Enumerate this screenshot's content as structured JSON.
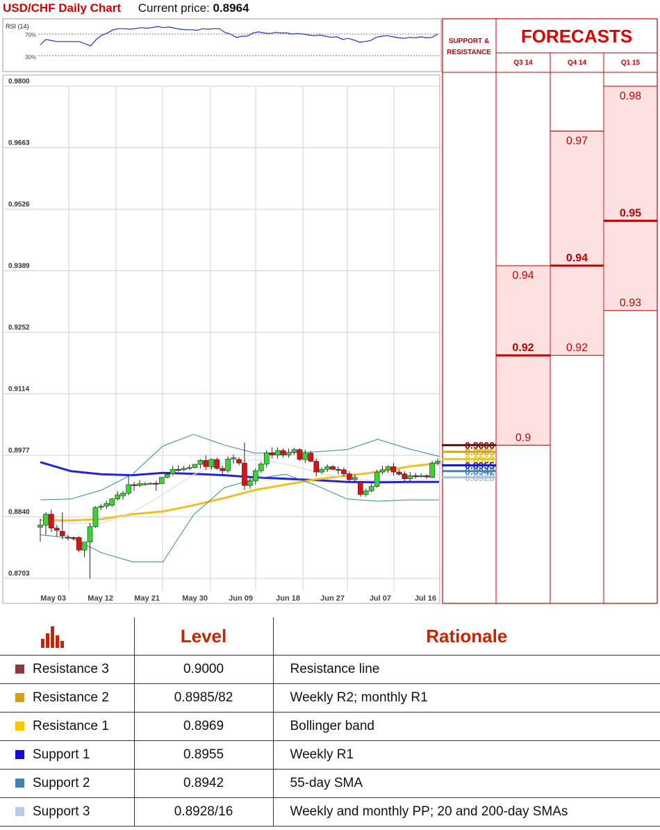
{
  "header": {
    "title": "USD/CHF Daily Chart",
    "price_label": "Current price: ",
    "price_value": "0.8964"
  },
  "rsi": {
    "label": "RSI (14)",
    "level_high": "70%",
    "level_low": "30%",
    "values": [
      50,
      60,
      58,
      56,
      56,
      56,
      56,
      56,
      52,
      48,
      60,
      68,
      72,
      78,
      80,
      80,
      79,
      80,
      82,
      81,
      82,
      84,
      82,
      83,
      81,
      79,
      78,
      78,
      77,
      80,
      79,
      80,
      80,
      73,
      70,
      64,
      66,
      66,
      72,
      74,
      72,
      71,
      73,
      72,
      72,
      70,
      71,
      70,
      68,
      67,
      68,
      66,
      64,
      65,
      60,
      62,
      59,
      55,
      56,
      58,
      64,
      66,
      67,
      65,
      63,
      62,
      64,
      63,
      65,
      63,
      64,
      70
    ]
  },
  "chart_data": {
    "type": "candlestick",
    "title": "USD/CHF Daily Chart",
    "x_ticks": [
      "May 03",
      "May 12",
      "May 21",
      "May 30",
      "Jun 09",
      "Jun 18",
      "Jun 27",
      "Jul 07",
      "Jul 16"
    ],
    "y_ticks": [
      "0.9800",
      "0.9663",
      "0.9526",
      "0.9389",
      "0.9252",
      "0.9114",
      "0.8977",
      "0.8840",
      "0.8703"
    ],
    "ylim": [
      0.8703,
      0.98
    ],
    "candles": [
      {
        "o": 0.8817,
        "h": 0.8836,
        "l": 0.8785,
        "c": 0.8822
      },
      {
        "o": 0.8822,
        "h": 0.885,
        "l": 0.88,
        "c": 0.8846
      },
      {
        "o": 0.8846,
        "h": 0.8856,
        "l": 0.8806,
        "c": 0.8815
      },
      {
        "o": 0.8815,
        "h": 0.8822,
        "l": 0.8796,
        "c": 0.881
      },
      {
        "o": 0.8808,
        "h": 0.885,
        "l": 0.879,
        "c": 0.8798
      },
      {
        "o": 0.8795,
        "h": 0.88,
        "l": 0.8788,
        "c": 0.8794
      },
      {
        "o": 0.8794,
        "h": 0.8796,
        "l": 0.8788,
        "c": 0.8793
      },
      {
        "o": 0.8794,
        "h": 0.8797,
        "l": 0.8762,
        "c": 0.8766
      },
      {
        "o": 0.8766,
        "h": 0.878,
        "l": 0.875,
        "c": 0.8784
      },
      {
        "o": 0.8784,
        "h": 0.8826,
        "l": 0.8702,
        "c": 0.8818
      },
      {
        "o": 0.8818,
        "h": 0.8864,
        "l": 0.8815,
        "c": 0.8861
      },
      {
        "o": 0.8861,
        "h": 0.8868,
        "l": 0.8855,
        "c": 0.8864
      },
      {
        "o": 0.8864,
        "h": 0.8876,
        "l": 0.8858,
        "c": 0.887
      },
      {
        "o": 0.8866,
        "h": 0.8882,
        "l": 0.8862,
        "c": 0.888
      },
      {
        "o": 0.888,
        "h": 0.8897,
        "l": 0.8876,
        "c": 0.8889
      },
      {
        "o": 0.8887,
        "h": 0.8898,
        "l": 0.8878,
        "c": 0.8893
      },
      {
        "o": 0.8893,
        "h": 0.8932,
        "l": 0.8888,
        "c": 0.8912
      },
      {
        "o": 0.8912,
        "h": 0.8918,
        "l": 0.8898,
        "c": 0.891
      },
      {
        "o": 0.891,
        "h": 0.8922,
        "l": 0.8907,
        "c": 0.8914
      },
      {
        "o": 0.8913,
        "h": 0.8918,
        "l": 0.891,
        "c": 0.8914
      },
      {
        "o": 0.8914,
        "h": 0.8917,
        "l": 0.8912,
        "c": 0.8915
      },
      {
        "o": 0.8915,
        "h": 0.8921,
        "l": 0.8898,
        "c": 0.8914
      },
      {
        "o": 0.8914,
        "h": 0.8929,
        "l": 0.8913,
        "c": 0.8928
      },
      {
        "o": 0.8928,
        "h": 0.8939,
        "l": 0.8926,
        "c": 0.8935
      },
      {
        "o": 0.8936,
        "h": 0.8954,
        "l": 0.8932,
        "c": 0.8946
      },
      {
        "o": 0.8946,
        "h": 0.8955,
        "l": 0.8941,
        "c": 0.8945
      },
      {
        "o": 0.8945,
        "h": 0.8954,
        "l": 0.8942,
        "c": 0.8948
      },
      {
        "o": 0.8948,
        "h": 0.8956,
        "l": 0.8945,
        "c": 0.895
      },
      {
        "o": 0.895,
        "h": 0.8958,
        "l": 0.8948,
        "c": 0.8957
      },
      {
        "o": 0.8957,
        "h": 0.8969,
        "l": 0.8948,
        "c": 0.8966
      },
      {
        "o": 0.8966,
        "h": 0.8977,
        "l": 0.8945,
        "c": 0.8952
      },
      {
        "o": 0.8952,
        "h": 0.897,
        "l": 0.8946,
        "c": 0.8968
      },
      {
        "o": 0.8968,
        "h": 0.8972,
        "l": 0.8945,
        "c": 0.8948
      },
      {
        "o": 0.8948,
        "h": 0.8954,
        "l": 0.8935,
        "c": 0.8943
      },
      {
        "o": 0.8943,
        "h": 0.8975,
        "l": 0.8938,
        "c": 0.8969
      },
      {
        "o": 0.8969,
        "h": 0.8979,
        "l": 0.8958,
        "c": 0.8972
      },
      {
        "o": 0.8968,
        "h": 0.8973,
        "l": 0.8955,
        "c": 0.896
      },
      {
        "o": 0.896,
        "h": 0.9006,
        "l": 0.89,
        "c": 0.891
      },
      {
        "o": 0.891,
        "h": 0.8928,
        "l": 0.8903,
        "c": 0.892
      },
      {
        "o": 0.892,
        "h": 0.8948,
        "l": 0.8912,
        "c": 0.8943
      },
      {
        "o": 0.8943,
        "h": 0.8963,
        "l": 0.8938,
        "c": 0.8958
      },
      {
        "o": 0.8958,
        "h": 0.8989,
        "l": 0.895,
        "c": 0.8983
      },
      {
        "o": 0.8983,
        "h": 0.8995,
        "l": 0.897,
        "c": 0.8978
      },
      {
        "o": 0.8978,
        "h": 0.8995,
        "l": 0.897,
        "c": 0.8988
      },
      {
        "o": 0.8988,
        "h": 0.8993,
        "l": 0.8972,
        "c": 0.8978
      },
      {
        "o": 0.8978,
        "h": 0.8992,
        "l": 0.8972,
        "c": 0.8984
      },
      {
        "o": 0.8984,
        "h": 0.8994,
        "l": 0.8978,
        "c": 0.899
      },
      {
        "o": 0.899,
        "h": 0.8993,
        "l": 0.8965,
        "c": 0.8968
      },
      {
        "o": 0.8968,
        "h": 0.899,
        "l": 0.896,
        "c": 0.8982
      },
      {
        "o": 0.8982,
        "h": 0.8987,
        "l": 0.8962,
        "c": 0.8964
      },
      {
        "o": 0.8964,
        "h": 0.897,
        "l": 0.893,
        "c": 0.894
      },
      {
        "o": 0.894,
        "h": 0.895,
        "l": 0.8936,
        "c": 0.8946
      },
      {
        "o": 0.8946,
        "h": 0.8957,
        "l": 0.894,
        "c": 0.8952
      },
      {
        "o": 0.8952,
        "h": 0.8956,
        "l": 0.8944,
        "c": 0.8946
      },
      {
        "o": 0.8946,
        "h": 0.8953,
        "l": 0.8935,
        "c": 0.8945
      },
      {
        "o": 0.8945,
        "h": 0.895,
        "l": 0.893,
        "c": 0.8936
      },
      {
        "o": 0.8936,
        "h": 0.8942,
        "l": 0.8918,
        "c": 0.8923
      },
      {
        "o": 0.8923,
        "h": 0.8935,
        "l": 0.8918,
        "c": 0.8928
      },
      {
        "o": 0.8918,
        "h": 0.892,
        "l": 0.8885,
        "c": 0.889
      },
      {
        "o": 0.889,
        "h": 0.8903,
        "l": 0.8885,
        "c": 0.8898
      },
      {
        "o": 0.8898,
        "h": 0.8915,
        "l": 0.8895,
        "c": 0.8908
      },
      {
        "o": 0.8908,
        "h": 0.8945,
        "l": 0.8905,
        "c": 0.894
      },
      {
        "o": 0.894,
        "h": 0.8954,
        "l": 0.8935,
        "c": 0.8945
      },
      {
        "o": 0.8945,
        "h": 0.8955,
        "l": 0.8938,
        "c": 0.8952
      },
      {
        "o": 0.8952,
        "h": 0.896,
        "l": 0.8932,
        "c": 0.894
      },
      {
        "o": 0.894,
        "h": 0.8946,
        "l": 0.8932,
        "c": 0.8935
      },
      {
        "o": 0.8936,
        "h": 0.8942,
        "l": 0.892,
        "c": 0.8925
      },
      {
        "o": 0.8925,
        "h": 0.894,
        "l": 0.892,
        "c": 0.8932
      },
      {
        "o": 0.8932,
        "h": 0.8938,
        "l": 0.8925,
        "c": 0.893
      },
      {
        "o": 0.893,
        "h": 0.8937,
        "l": 0.8928,
        "c": 0.8932
      },
      {
        "o": 0.8932,
        "h": 0.8935,
        "l": 0.8925,
        "c": 0.8929
      },
      {
        "o": 0.8928,
        "h": 0.8965,
        "l": 0.8926,
        "c": 0.896
      },
      {
        "o": 0.896,
        "h": 0.897,
        "l": 0.8955,
        "c": 0.8964
      }
    ],
    "lines": [
      {
        "color": "#2222dd",
        "y": [
          0.8962,
          0.8942,
          0.8935,
          0.8933,
          0.8938,
          0.8936,
          0.8933,
          0.8928,
          0.8925,
          0.8922,
          0.8918,
          0.8917,
          0.8918,
          0.8918
        ]
      },
      {
        "color": "#f0c020",
        "y": [
          0.8833,
          0.8832,
          0.8835,
          0.8846,
          0.8852,
          0.8866,
          0.8882,
          0.89,
          0.8912,
          0.8924,
          0.8932,
          0.894,
          0.8952,
          0.896
        ]
      },
      {
        "color": "#2e8b8b",
        "y": [
          0.8878,
          0.888,
          0.89,
          0.8935,
          0.8998,
          0.9024,
          0.9,
          0.8982,
          0.8983,
          0.8985,
          0.899,
          0.9013,
          0.8992,
          0.8975
        ]
      },
      {
        "color": "#2e8b8b",
        "y": [
          0.88,
          0.8793,
          0.876,
          0.874,
          0.874,
          0.8845,
          0.8905,
          0.8925,
          0.8935,
          0.891,
          0.888,
          0.8875,
          0.8878,
          0.8878
        ]
      },
      {
        "color": "#dcdcdc",
        "y": [
          0.8835,
          0.8826,
          0.8826,
          0.885,
          0.889,
          0.8935,
          0.8961,
          0.8968,
          0.8958,
          0.894,
          0.8925,
          0.892,
          0.8925,
          0.8935
        ]
      }
    ],
    "sr_levels": [
      {
        "name": "Resistance 3",
        "value": 0.9,
        "label": "0.9000",
        "color": "#800000"
      },
      {
        "name": "Resistance 2",
        "value": 0.8985,
        "label": "0.8985",
        "color": "#d4a017"
      },
      {
        "name": "Resistance 1",
        "value": 0.8969,
        "label": "0.8969",
        "color": "#f6c700"
      },
      {
        "name": "Support 1",
        "value": 0.8955,
        "label": "0.8955",
        "color": "#1010cc"
      },
      {
        "name": "Support 2",
        "value": 0.8942,
        "label": "0.8942",
        "color": "#4a80b0"
      },
      {
        "name": "Support 3",
        "value": 0.8928,
        "label": "0.8928",
        "color": "#a7c2de"
      }
    ],
    "forecast_heading": "FORECASTS",
    "sr_heading_1": "SUPPORT &",
    "sr_heading_2": "RESISTANCE",
    "forecasts": [
      {
        "quarter": "Q3 14",
        "high": 0.94,
        "mid": 0.92,
        "low": 0.9,
        "high_label": "0.94",
        "mid_label": "0.92",
        "low_label": "0.9"
      },
      {
        "quarter": "Q4 14",
        "high": 0.97,
        "mid": 0.94,
        "low": 0.92,
        "high_label": "0.97",
        "mid_label": "0.94",
        "low_label": "0.92"
      },
      {
        "quarter": "Q1 15",
        "high": 0.98,
        "mid": 0.95,
        "low": 0.93,
        "high_label": "0.98",
        "mid_label": "0.95",
        "low_label": "0.93"
      }
    ]
  },
  "levels_table": {
    "icon": "bar-chart-icon",
    "header_level": "Level",
    "header_rationale": "Rationale",
    "rows": [
      {
        "name": "Resistance 3",
        "level": "0.9000",
        "rationale": "Resistance line",
        "color": "#8b3a3a"
      },
      {
        "name": "Resistance 2",
        "level": "0.8985/82",
        "rationale": "Weekly R2; monthly R1",
        "color": "#d4a017"
      },
      {
        "name": "Resistance 1",
        "level": "0.8969",
        "rationale": "Bollinger band",
        "color": "#f6c700"
      },
      {
        "name": "Support 1",
        "level": "0.8955",
        "rationale": "Weekly R1",
        "color": "#1010cc"
      },
      {
        "name": "Support 2",
        "level": "0.8942",
        "rationale": "55-day SMA",
        "color": "#4a80b0"
      },
      {
        "name": "Support 3",
        "level": "0.8928/16",
        "rationale": "Weekly and monthly PP; 20 and 200-day SMAs",
        "color": "#b8cce4"
      }
    ]
  }
}
